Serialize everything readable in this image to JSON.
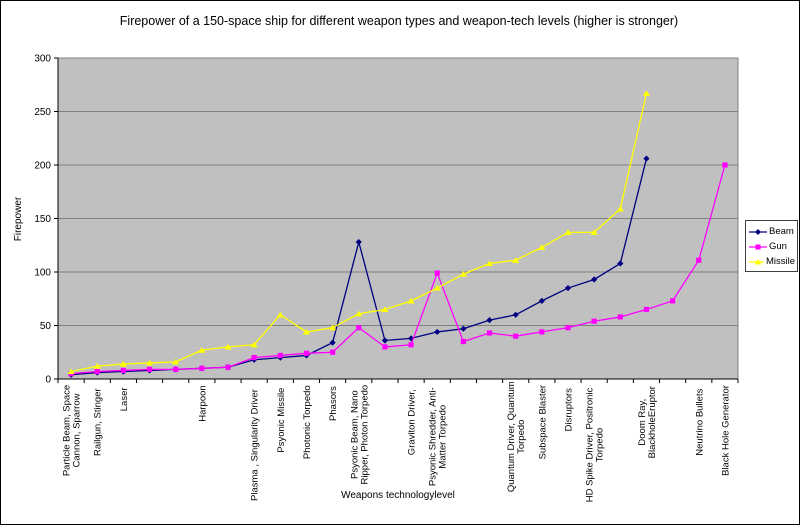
{
  "chart_data": {
    "type": "line",
    "title": "Firepower of a 150-space ship for different weapon types and weapon-tech levels (higher is stronger)",
    "xlabel": "Weapons technologylevel",
    "ylabel": "Firepower",
    "ylim": [
      0,
      300
    ],
    "ytick_interval": 50,
    "yticks": [
      0,
      50,
      100,
      150,
      200,
      250,
      300
    ],
    "grid": true,
    "plot_background": "#C0C0C0",
    "gridline_color": "#808080",
    "axis_color": "#000000",
    "legend_position": "right",
    "categories": [
      "Particle Beam, Space\nCannon, Sparrow",
      "Railgun, Stinger",
      "Laser",
      "",
      "",
      "Harpoon",
      "",
      "Plasma , Singularity Driver",
      "Psyonic Missile",
      "Photonic Torpedo",
      "Phasors",
      "Psyonic Beam, Nano\nRipper, Photon Torpedo",
      "",
      "Graviton Driver,",
      "Psyonic Shredder, Anti-\nMatter Torpedo",
      "",
      "",
      "Quantum Driver, Quantum\nTorpedo",
      "Subspace Blaster",
      "Disruptors",
      "HD Spike Driver, Positronic\nTorpedo",
      "",
      "Doom Ray,\nBlackholeEruptor",
      "",
      "Neutrino Bullets",
      "Black Hole Generator"
    ],
    "series": [
      {
        "name": "Beam",
        "color": "#000080",
        "marker": "diamond",
        "values": [
          4,
          6,
          7,
          8,
          9,
          10,
          11,
          18,
          20,
          22,
          34,
          128,
          36,
          38,
          44,
          47,
          55,
          60,
          73,
          85,
          93,
          108,
          206,
          null,
          null,
          null
        ]
      },
      {
        "name": "Gun",
        "color": "#FF00FF",
        "marker": "square",
        "values": [
          5,
          7,
          8,
          9,
          9,
          10,
          11,
          20,
          22,
          24,
          25,
          48,
          30,
          32,
          99,
          35,
          43,
          40,
          44,
          48,
          54,
          58,
          65,
          73,
          111,
          200
        ]
      },
      {
        "name": "Missile",
        "color": "#FFFF00",
        "marker": "triangle",
        "values": [
          7,
          12,
          14,
          15,
          16,
          27,
          30,
          32,
          60,
          44,
          48,
          61,
          65,
          73,
          85,
          98,
          108,
          111,
          123,
          137,
          137,
          159,
          267,
          null,
          null,
          null
        ]
      }
    ]
  }
}
